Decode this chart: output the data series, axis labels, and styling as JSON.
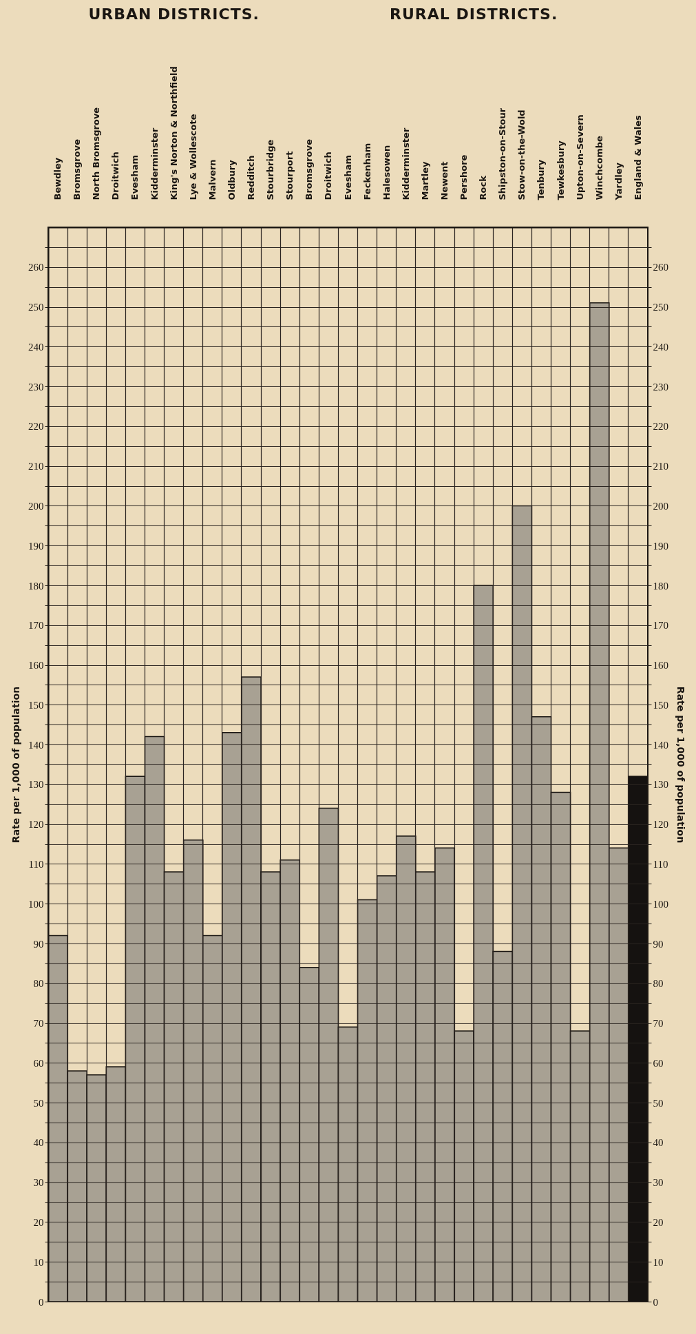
{
  "chart_data": {
    "type": "bar",
    "annotations": [
      "URBAN DISTRICTS.",
      "RURAL DISTRICTS."
    ],
    "ylabel": "Rate per 1,000 of population",
    "y2label": "Rate per 1,000 of population",
    "categories": [
      "Bewdley",
      "Bromsgrove",
      "North Bromsgrove",
      "Droitwich",
      "Evesham",
      "Kidderminster",
      "King's Norton & Northfield",
      "Lye & Wollescote",
      "Malvern",
      "Oldbury",
      "Redditch",
      "Stourbridge",
      "Stourport",
      "Bromsgrove",
      "Droitwich",
      "Evesham",
      "Feckenham",
      "Halesowen",
      "Kidderminster",
      "Martley",
      "Newent",
      "Pershore",
      "Rock",
      "Shipston-on-Stour",
      "Stow-on-the-Wold",
      "Tenbury",
      "Tewkesbury",
      "Upton-on-Severn",
      "Winchcombe",
      "Yardley",
      "England & Wales"
    ],
    "values": [
      92,
      58,
      57,
      59,
      132,
      142,
      108,
      116,
      92,
      143,
      157,
      108,
      111,
      84,
      124,
      69,
      101,
      107,
      117,
      108,
      114,
      68,
      180,
      88,
      200,
      147,
      128,
      68,
      251,
      114,
      132
    ],
    "colors": [
      "#a8a193",
      "#a8a193",
      "#a8a193",
      "#a8a193",
      "#a8a193",
      "#a8a193",
      "#a8a193",
      "#a8a193",
      "#a8a193",
      "#a8a193",
      "#a8a193",
      "#a8a193",
      "#a8a193",
      "#a8a193",
      "#a8a193",
      "#a8a193",
      "#a8a193",
      "#a8a193",
      "#a8a193",
      "#a8a193",
      "#a8a193",
      "#a8a193",
      "#a8a193",
      "#a8a193",
      "#a8a193",
      "#a8a193",
      "#a8a193",
      "#a8a193",
      "#a8a193",
      "#a8a193",
      "#151210"
    ],
    "ylim": [
      0,
      270
    ],
    "yticks": [
      0,
      {
        "value": 5,
        "label": null
      },
      10,
      {
        "value": 15,
        "label": null
      },
      20,
      {
        "value": 25,
        "label": null
      },
      30,
      {
        "value": 35,
        "label": null
      },
      40,
      {
        "value": 45,
        "label": null
      },
      50,
      {
        "value": 55,
        "label": null
      },
      60,
      {
        "value": 65,
        "label": null
      },
      70,
      {
        "value": 75,
        "label": null
      },
      80,
      {
        "value": 85,
        "label": null
      },
      90,
      {
        "value": 95,
        "label": null
      },
      100,
      {
        "value": 105,
        "label": null
      },
      110,
      {
        "value": 115,
        "label": null
      },
      120,
      {
        "value": 125,
        "label": null
      },
      130,
      {
        "value": 135,
        "label": null
      },
      140,
      {
        "value": 145,
        "label": null
      },
      150,
      {
        "value": 155,
        "label": null
      },
      160,
      {
        "value": 165,
        "label": null
      },
      170,
      {
        "value": 175,
        "label": null
      },
      180,
      {
        "value": 185,
        "label": null
      },
      190,
      {
        "value": 195,
        "label": null
      },
      200,
      {
        "value": 205,
        "label": null
      },
      210,
      {
        "value": 215,
        "label": null
      },
      220,
      {
        "value": 225,
        "label": null
      },
      230,
      {
        "value": 235,
        "label": null
      },
      240,
      {
        "value": 245,
        "label": null
      },
      250,
      {
        "value": 255,
        "label": null
      },
      260,
      {
        "value": 265,
        "label": null
      }
    ],
    "y2lim": [
      0,
      270
    ],
    "y2ticks": [
      0,
      {
        "value": 5,
        "label": null
      },
      10,
      {
        "value": 15,
        "label": null
      },
      20,
      {
        "value": 25,
        "label": null
      },
      30,
      {
        "value": 35,
        "label": null
      },
      40,
      {
        "value": 45,
        "label": null
      },
      50,
      {
        "value": 55,
        "label": null
      },
      60,
      {
        "value": 65,
        "label": null
      },
      70,
      {
        "value": 75,
        "label": null
      },
      80,
      {
        "value": 85,
        "label": null
      },
      90,
      {
        "value": 95,
        "label": null
      },
      100,
      {
        "value": 105,
        "label": null
      },
      110,
      {
        "value": 115,
        "label": null
      },
      120,
      {
        "value": 125,
        "label": null
      },
      130,
      {
        "value": 135,
        "label": null
      },
      140,
      {
        "value": 145,
        "label": null
      },
      150,
      {
        "value": 155,
        "label": null
      },
      160,
      {
        "value": 165,
        "label": null
      },
      170,
      {
        "value": 175,
        "label": null
      },
      180,
      {
        "value": 185,
        "label": null
      },
      190,
      {
        "value": 195,
        "label": null
      },
      200,
      {
        "value": 205,
        "label": null
      },
      210,
      {
        "value": 215,
        "label": null
      },
      220,
      {
        "value": 225,
        "label": null
      },
      230,
      {
        "value": 235,
        "label": null
      },
      240,
      {
        "value": 245,
        "label": null
      },
      250,
      {
        "value": 255,
        "label": null
      },
      260,
      {
        "value": 265,
        "label": null
      }
    ],
    "grid": true
  }
}
